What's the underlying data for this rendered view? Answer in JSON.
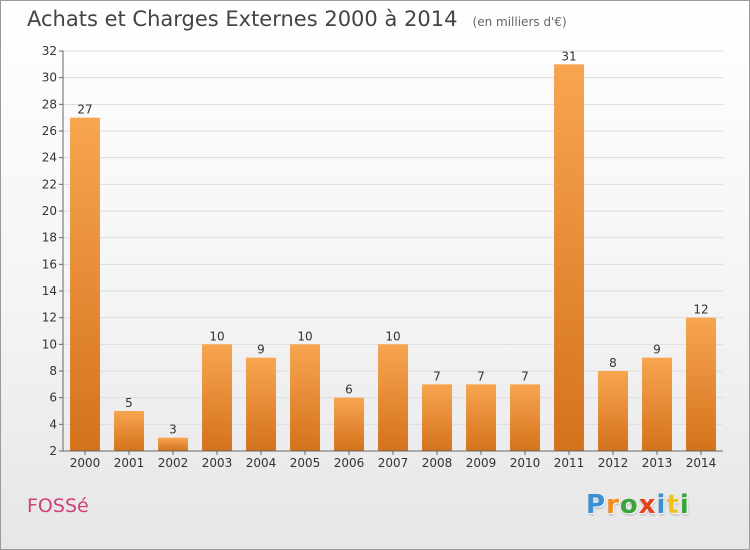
{
  "header": {
    "title": "Achats et Charges Externes 2000 à 2014",
    "unit": "(en milliers d'€)"
  },
  "footer": {
    "commune": "FOSSé",
    "logo": {
      "letters": [
        "P",
        "r",
        "o",
        "x",
        "i",
        "t",
        "i"
      ]
    }
  },
  "colors": {
    "bar_light": "#f8a550",
    "bar_dark": "#d4721c",
    "grid": "#dddddd",
    "axis": "#666666",
    "logo": [
      "#3a8fd6",
      "#f28c1e",
      "#3ba33b",
      "#e2431e",
      "#3a8fd6",
      "#f0c21e",
      "#3ba33b"
    ]
  },
  "chart_data": {
    "type": "bar",
    "title": "Achats et Charges Externes 2000 à 2014",
    "subtitle": "(en milliers d'€)",
    "categories": [
      "2000",
      "2001",
      "2002",
      "2003",
      "2004",
      "2005",
      "2006",
      "2007",
      "2008",
      "2009",
      "2010",
      "2011",
      "2012",
      "2013",
      "2014"
    ],
    "values": [
      27,
      5,
      3,
      10,
      9,
      10,
      6,
      10,
      7,
      7,
      7,
      31,
      8,
      9,
      12
    ],
    "ylim": [
      2,
      32
    ],
    "yticks": [
      2,
      4,
      6,
      8,
      10,
      12,
      14,
      16,
      18,
      20,
      22,
      24,
      26,
      28,
      30,
      32
    ],
    "grid": true,
    "legend": "none",
    "data_labels": true
  }
}
